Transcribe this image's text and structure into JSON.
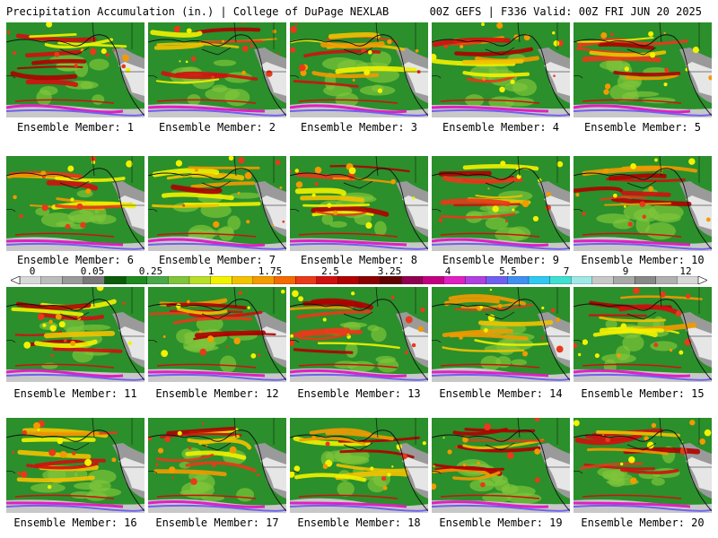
{
  "header": {
    "title": "Precipitation Accumulation (in.) | College of DuPage NEXLAB",
    "run_info": "00Z GEFS | F336 Valid: 00Z FRI JUN 20 2025"
  },
  "colorbar": {
    "labels": [
      "0",
      "0.05",
      "0.25",
      "1",
      "1.75",
      "2.5",
      "3.25",
      "4",
      "5.5",
      "7",
      "9",
      "12"
    ],
    "colors": [
      "#d8d8d8",
      "#bcbcbc",
      "#9a9a9a",
      "#7a7a7a",
      "#0a5c0a",
      "#1f8a1f",
      "#4aa84a",
      "#7fc43a",
      "#b8de2a",
      "#f2f200",
      "#f2c200",
      "#f29a00",
      "#f26a00",
      "#e83a1a",
      "#d01010",
      "#b00000",
      "#8a0000",
      "#600000",
      "#900050",
      "#c00080",
      "#e020c0",
      "#b040e0",
      "#7060f0",
      "#4090f0",
      "#30c8f0",
      "#40e0d0",
      "#a0e8e8",
      "#c8c8c8",
      "#a8a8a8",
      "#888888",
      "#b0b0b0",
      "#d8d8d8"
    ]
  },
  "panels": [
    {
      "member": "Ensemble Member: 1"
    },
    {
      "member": "Ensemble Member: 2"
    },
    {
      "member": "Ensemble Member: 3"
    },
    {
      "member": "Ensemble Member: 4"
    },
    {
      "member": "Ensemble Member: 5"
    },
    {
      "member": "Ensemble Member: 6"
    },
    {
      "member": "Ensemble Member: 7"
    },
    {
      "member": "Ensemble Member: 8"
    },
    {
      "member": "Ensemble Member: 9"
    },
    {
      "member": "Ensemble Member: 10"
    },
    {
      "member": "Ensemble Member: 11"
    },
    {
      "member": "Ensemble Member: 12"
    },
    {
      "member": "Ensemble Member: 13"
    },
    {
      "member": "Ensemble Member: 14"
    },
    {
      "member": "Ensemble Member: 15"
    },
    {
      "member": "Ensemble Member: 16"
    },
    {
      "member": "Ensemble Member: 17"
    },
    {
      "member": "Ensemble Member: 18"
    },
    {
      "member": "Ensemble Member: 19"
    },
    {
      "member": "Ensemble Member: 20"
    }
  ]
}
